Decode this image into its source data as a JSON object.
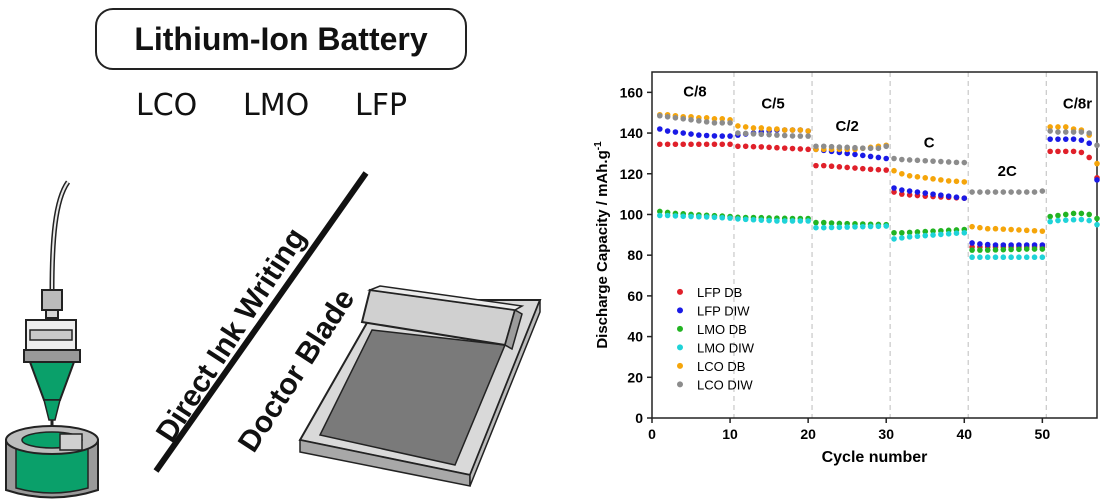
{
  "title": "Lithium-Ion Battery",
  "chemistries": [
    "LCO",
    "LMO",
    "LFP"
  ],
  "methods": {
    "diw": "Direct Ink Writing",
    "db": "Doctor Blade"
  },
  "colors": {
    "LFP DB": "#e0202a",
    "LFP DIW": "#1a1ae6",
    "LMO DB": "#22b422",
    "LMO DIW": "#1fd3d8",
    "LCO DB": "#f5a50a",
    "LCO DIW": "#8c8c8c",
    "ink": "#0aa06a",
    "gray": "#b8b8b8"
  },
  "chart_data": {
    "type": "scatter",
    "xlabel": "Cycle number",
    "ylabel": "Discharge Capacity / mAh.g",
    "ylabel_sup": "-1",
    "xlim": [
      0,
      57
    ],
    "ylim": [
      0,
      170
    ],
    "xticks": [
      0,
      10,
      20,
      30,
      40,
      50
    ],
    "yticks": [
      0,
      20,
      40,
      60,
      80,
      100,
      120,
      140,
      160
    ],
    "legend_position": "bottom-left",
    "rate_dividers": [
      10.5,
      20.5,
      30.5,
      40.5,
      50.5
    ],
    "rate_labels": [
      {
        "text": "C/8",
        "x": 5.5,
        "y": 158
      },
      {
        "text": "C/5",
        "x": 15.5,
        "y": 152
      },
      {
        "text": "C/2",
        "x": 25,
        "y": 141
      },
      {
        "text": "C",
        "x": 35.5,
        "y": 133
      },
      {
        "text": "2C",
        "x": 45.5,
        "y": 119
      },
      {
        "text": "C/8r",
        "x": 54.5,
        "y": 152
      }
    ],
    "x": [
      1,
      2,
      3,
      4,
      5,
      6,
      7,
      8,
      9,
      10,
      11,
      12,
      13,
      14,
      15,
      16,
      17,
      18,
      19,
      20,
      21,
      22,
      23,
      24,
      25,
      26,
      27,
      28,
      29,
      30,
      31,
      32,
      33,
      34,
      35,
      36,
      37,
      38,
      39,
      40,
      41,
      42,
      43,
      44,
      45,
      46,
      47,
      48,
      49,
      50,
      51,
      52,
      53,
      54,
      55,
      56,
      57
    ],
    "series": [
      {
        "name": "LFP DB",
        "values": [
          134.5,
          134.5,
          134.5,
          134.5,
          134.5,
          134.5,
          134.5,
          134.5,
          134.5,
          134.5,
          133.5,
          133.5,
          133.3,
          133.2,
          133,
          132.8,
          132.6,
          132.4,
          132.2,
          132,
          124,
          124,
          123.7,
          123.4,
          123.1,
          122.8,
          122.5,
          122.2,
          122,
          121.8,
          111,
          110,
          109.6,
          109.3,
          109,
          108.8,
          108.6,
          108.4,
          108.2,
          108,
          84,
          84,
          84,
          84,
          84,
          84,
          84,
          84,
          84,
          84,
          131,
          131,
          131,
          131,
          130.5,
          128,
          118
        ]
      },
      {
        "name": "LFP DIW",
        "values": [
          142,
          141,
          140.5,
          140,
          139.5,
          139,
          138.8,
          138.6,
          138.5,
          138.5,
          139,
          139.5,
          140,
          140.5,
          141,
          141.5,
          141.5,
          141.5,
          141.5,
          141,
          132,
          131.5,
          131,
          130.5,
          130,
          129.5,
          129,
          128.5,
          128,
          127.5,
          113,
          112,
          111.5,
          111,
          110.5,
          110,
          109.5,
          109,
          108.5,
          108,
          86,
          85.5,
          85.2,
          85,
          85,
          85,
          85,
          85,
          85,
          85,
          137,
          137,
          137,
          137,
          136.5,
          135,
          117
        ]
      },
      {
        "name": "LMO DB",
        "values": [
          101.5,
          101,
          100.5,
          100.3,
          100,
          99.8,
          99.6,
          99.4,
          99.2,
          99,
          98.6,
          98.5,
          98.5,
          98.4,
          98.3,
          98.2,
          98.1,
          98,
          98,
          98,
          96,
          96,
          95.8,
          95.6,
          95.5,
          95.4,
          95.3,
          95.2,
          95.1,
          95,
          91,
          91,
          91.2,
          91.4,
          91.6,
          91.8,
          92,
          92.2,
          92.4,
          92.6,
          82.5,
          82.5,
          82.5,
          82.6,
          82.7,
          82.8,
          82.9,
          83,
          83,
          83,
          99,
          99.5,
          100,
          100.5,
          100.5,
          100,
          98
        ]
      },
      {
        "name": "LMO DIW",
        "values": [
          99.5,
          99.5,
          99.3,
          99.1,
          99,
          98.9,
          98.8,
          98.6,
          98.4,
          98.2,
          97.8,
          97.6,
          97.4,
          97.2,
          97,
          96.8,
          96.8,
          96.8,
          96.8,
          96.8,
          93.5,
          93.5,
          93.6,
          93.7,
          93.8,
          93.9,
          94,
          94.1,
          94.2,
          94.3,
          88,
          88.5,
          89,
          89.3,
          89.6,
          89.9,
          90.2,
          90.5,
          90.8,
          91,
          79,
          79,
          79,
          79,
          79,
          79,
          79,
          79,
          79,
          79,
          96.5,
          97,
          97.2,
          97.4,
          97.5,
          97,
          95
        ]
      },
      {
        "name": "LCO DB",
        "values": [
          149,
          149,
          148.5,
          148,
          148,
          147.5,
          147.5,
          147,
          147,
          146.5,
          143.5,
          143,
          142.5,
          142.5,
          142,
          142,
          141.5,
          141.5,
          141.5,
          141,
          132,
          132,
          132,
          132,
          132,
          132,
          132.5,
          133,
          133.5,
          134,
          121.5,
          120,
          119,
          118.5,
          118,
          117.5,
          117,
          116.5,
          116.3,
          116,
          94,
          93.5,
          93,
          93,
          92.8,
          92.6,
          92.4,
          92.2,
          92,
          91.8,
          143,
          143,
          143,
          142,
          141.5,
          139,
          125
        ]
      },
      {
        "name": "LCO DIW",
        "values": [
          148.5,
          148,
          147.5,
          147,
          146.5,
          146,
          145.5,
          145,
          145,
          145,
          140,
          139.8,
          139.6,
          139.4,
          139.2,
          139,
          138.8,
          138.6,
          138.5,
          138.5,
          133.5,
          133.5,
          133.3,
          133.1,
          133,
          132.8,
          132.6,
          132.5,
          132.5,
          133.5,
          127.5,
          127,
          126.8,
          126.6,
          126.4,
          126.2,
          126,
          125.8,
          125.6,
          125.5,
          111,
          111,
          111,
          111,
          111,
          111,
          111,
          111,
          111,
          111.5,
          141,
          140.5,
          140.5,
          140.5,
          140.5,
          140,
          134
        ]
      }
    ]
  }
}
